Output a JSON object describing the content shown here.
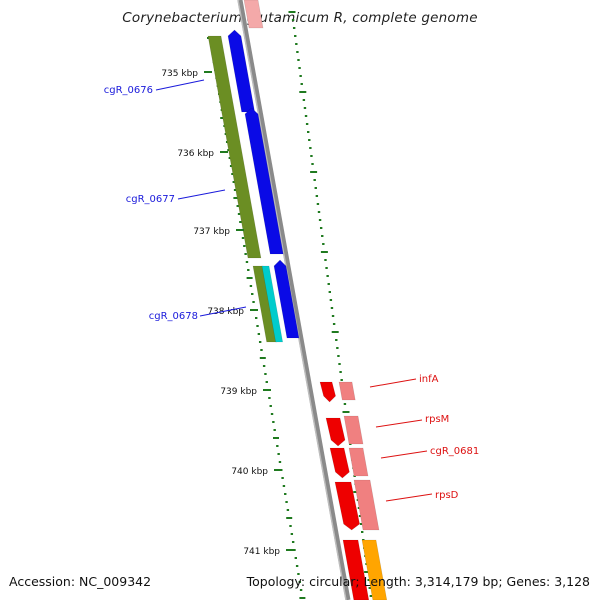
{
  "title": "Corynebacterium glutamicum R, complete genome",
  "footer": {
    "accession": "Accession: NC_009342",
    "topology": "Topology: circular; Length: 3,314,179 bp; Genes: 3,128"
  },
  "ruler": [
    {
      "label": "735 kbp"
    },
    {
      "label": "736 kbp"
    },
    {
      "label": "737 kbp"
    },
    {
      "label": "738 kbp"
    },
    {
      "label": "739 kbp"
    },
    {
      "label": "740 kbp"
    },
    {
      "label": "741 kbp"
    }
  ],
  "gene_labels": [
    {
      "name": "cgR_0676",
      "color": "#1a1adb"
    },
    {
      "name": "cgR_0677",
      "color": "#1a1adb"
    },
    {
      "name": "cgR_0678",
      "color": "#1a1adb"
    },
    {
      "name": "infA",
      "color": "#dd1111"
    },
    {
      "name": "rpsM",
      "color": "#dd1111"
    },
    {
      "name": "cgR_0681",
      "color": "#dd1111"
    },
    {
      "name": "rpsD",
      "color": "#dd1111"
    }
  ],
  "colors": {
    "backbone": "#8a8a8a",
    "ticks": "#1f7a1f",
    "cds_blue": "#0a0ae6",
    "gene_olive": "#6b8e23",
    "cds_red": "#ee0000",
    "gene_pink": "#f08080",
    "cyan": "#00cccc",
    "orange": "#ffa500"
  }
}
